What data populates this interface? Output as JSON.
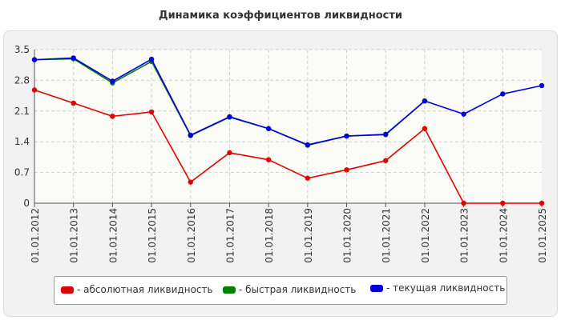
{
  "title": "Динамика коэффициентов ликвидности",
  "chart_data": {
    "type": "line",
    "title": "Динамика коэффициентов ликвидности",
    "x": [
      "01.01.2012",
      "01.01.2013",
      "01.01.2014",
      "01.01.2015",
      "01.01.2016",
      "01.01.2017",
      "01.01.2018",
      "01.01.2019",
      "01.01.2020",
      "01.01.2021",
      "01.01.2022",
      "01.01.2023",
      "01.01.2024",
      "01.01.2025"
    ],
    "ylim": [
      0,
      3.5
    ],
    "yticks": [
      "0",
      "0.7",
      "1.4",
      "2.1",
      "2.8",
      "3.5"
    ],
    "grid": true,
    "legend_position": "bottom",
    "series": [
      {
        "name": "- абсолютная ликвидность",
        "color": "#e00000",
        "values": [
          2.58,
          2.28,
          1.98,
          2.08,
          0.48,
          1.15,
          0.99,
          0.57,
          0.76,
          0.97,
          1.7,
          0.0,
          0.0,
          0.0
        ]
      },
      {
        "name": "- быстрая ликвидность",
        "color": "#008000",
        "values": [
          3.27,
          3.29,
          2.74,
          3.23,
          1.54,
          1.96,
          1.7,
          1.32,
          1.53,
          1.56,
          2.33,
          null,
          null,
          null
        ]
      },
      {
        "name": "- текущая ликвидность",
        "color": "#0000dd",
        "values": [
          3.27,
          3.31,
          2.78,
          3.28,
          1.55,
          1.97,
          1.7,
          1.33,
          1.53,
          1.57,
          2.33,
          2.03,
          2.49,
          2.68
        ]
      }
    ]
  }
}
